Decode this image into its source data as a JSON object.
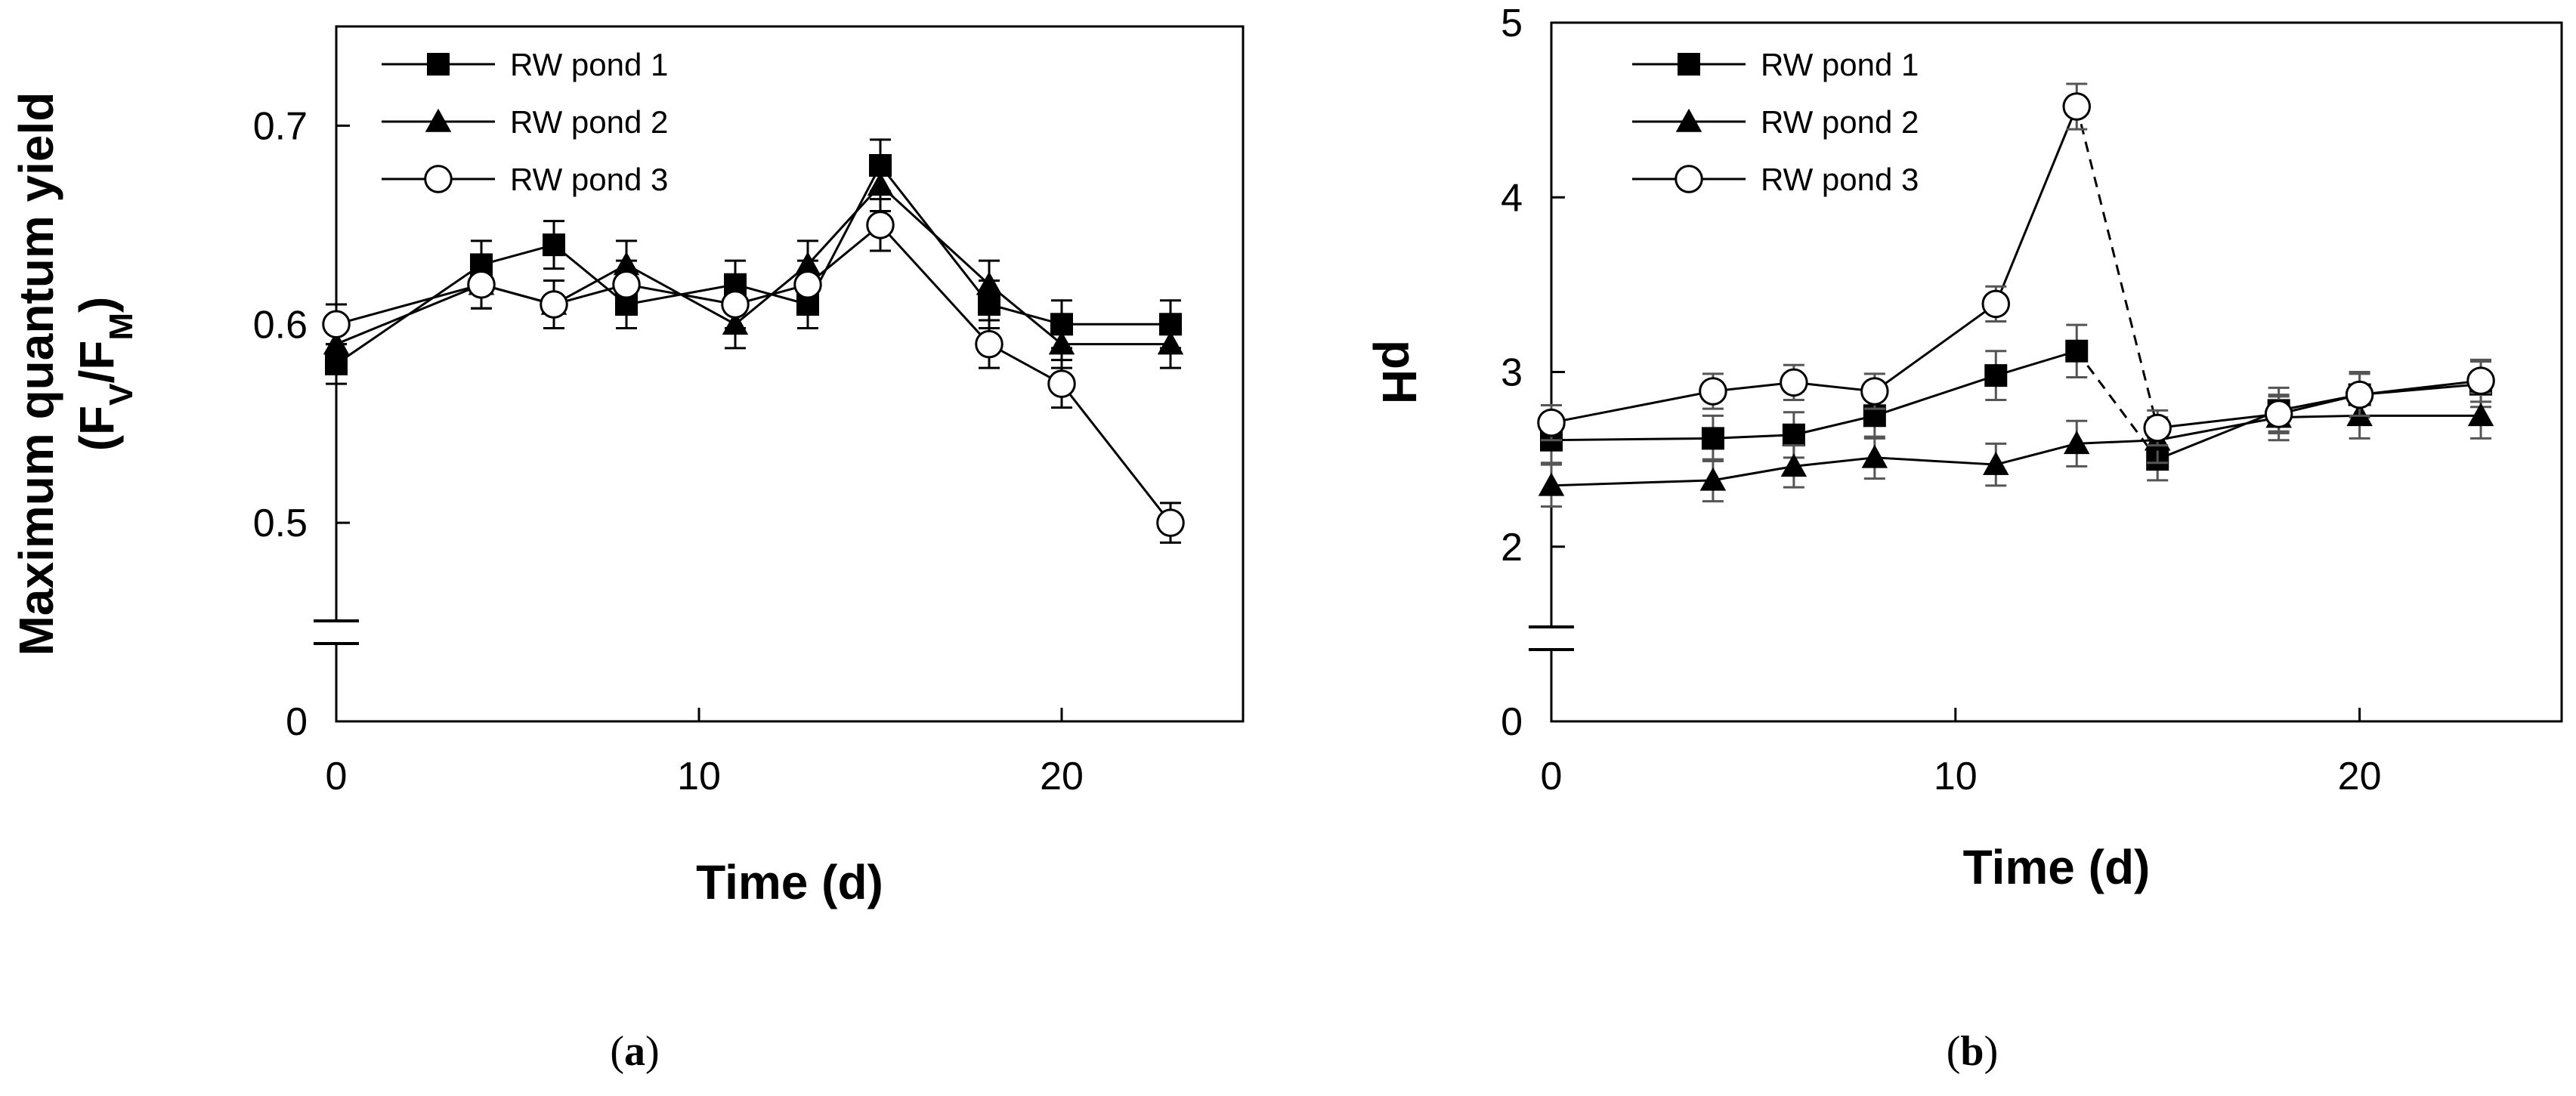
{
  "chart_data": [
    {
      "type": "line",
      "panel": "a",
      "panel_label_open": "(",
      "panel_label_letter": "a",
      "panel_label_close": ")",
      "xlabel": "Time (d)",
      "ylabel_line1": "Maximum quantum yield",
      "ylabel_line2_parts": [
        "(F",
        "V",
        "/F",
        "M",
        ")"
      ],
      "xlim": [
        0,
        25
      ],
      "ylim": [
        0.4,
        0.75
      ],
      "axis_break": true,
      "y_baseline_label": "0",
      "x_ticks": [
        0,
        10,
        20
      ],
      "x_tick_labels": [
        "0",
        "10",
        "20"
      ],
      "y_ticks": [
        0.5,
        0.6,
        0.7
      ],
      "y_tick_labels": [
        "0.5",
        "0.6",
        "0.7"
      ],
      "legend": [
        "RW pond 1",
        "RW pond 2",
        "RW pond 3"
      ],
      "legend_position": "top-left",
      "series": [
        {
          "name": "RW pond 1",
          "marker": "square-filled",
          "x": [
            0,
            4,
            6,
            8,
            11,
            13,
            15,
            18,
            20,
            23
          ],
          "y": [
            0.58,
            0.63,
            0.64,
            0.61,
            0.62,
            0.61,
            0.68,
            0.61,
            0.6,
            0.6
          ],
          "err": [
            0.01,
            0.012,
            0.012,
            0.012,
            0.012,
            0.012,
            0.013,
            0.012,
            0.012,
            0.012
          ]
        },
        {
          "name": "RW pond 2",
          "marker": "triangle-filled",
          "x": [
            0,
            4,
            6,
            8,
            11,
            13,
            15,
            18,
            20,
            23
          ],
          "y": [
            0.59,
            0.62,
            0.61,
            0.63,
            0.6,
            0.63,
            0.67,
            0.62,
            0.59,
            0.59
          ],
          "err": [
            0.01,
            0.012,
            0.012,
            0.012,
            0.012,
            0.012,
            0.013,
            0.012,
            0.012,
            0.012
          ]
        },
        {
          "name": "RW pond 3",
          "marker": "circle-open",
          "x": [
            0,
            4,
            6,
            8,
            11,
            13,
            15,
            18,
            20,
            23
          ],
          "y": [
            0.6,
            0.62,
            0.61,
            0.62,
            0.61,
            0.62,
            0.65,
            0.59,
            0.57,
            0.5
          ],
          "err": [
            0.01,
            0.012,
            0.012,
            0.012,
            0.012,
            0.012,
            0.013,
            0.012,
            0.012,
            0.01
          ]
        }
      ]
    },
    {
      "type": "line",
      "panel": "b",
      "panel_label_open": "(",
      "panel_label_letter": "b",
      "panel_label_close": ")",
      "xlabel": "Time (d)",
      "ylabel": "pH",
      "xlim": [
        0,
        25
      ],
      "ylim": [
        1,
        5
      ],
      "axis_break": true,
      "y_baseline_label": "0",
      "x_ticks": [
        0,
        10,
        20
      ],
      "x_tick_labels": [
        "0",
        "10",
        "20"
      ],
      "y_ticks": [
        2,
        3,
        4,
        5
      ],
      "y_tick_labels": [
        "2",
        "3",
        "4",
        "5"
      ],
      "legend": [
        "RW pond 1",
        "RW pond 2",
        "RW pond 3"
      ],
      "legend_position": "top-left",
      "series": [
        {
          "name": "RW pond 1",
          "marker": "square-filled",
          "x": [
            0,
            4,
            6,
            8,
            11,
            13,
            15,
            18,
            20,
            23
          ],
          "y": [
            2.61,
            2.62,
            2.64,
            2.75,
            2.98,
            3.12,
            2.5,
            2.78,
            2.87,
            2.93
          ],
          "err": [
            0.13,
            0.13,
            0.13,
            0.13,
            0.14,
            0.15,
            0.12,
            0.13,
            0.13,
            0.13
          ],
          "dashed_segments": [
            [
              13,
              15
            ]
          ]
        },
        {
          "name": "RW pond 2",
          "marker": "triangle-filled",
          "x": [
            0,
            4,
            6,
            8,
            11,
            13,
            15,
            18,
            20,
            23
          ],
          "y": [
            2.35,
            2.38,
            2.46,
            2.51,
            2.47,
            2.59,
            2.61,
            2.74,
            2.75,
            2.75
          ],
          "err": [
            0.12,
            0.12,
            0.12,
            0.12,
            0.12,
            0.13,
            0.13,
            0.13,
            0.13,
            0.13
          ]
        },
        {
          "name": "RW pond 3",
          "marker": "circle-open",
          "x": [
            0,
            4,
            6,
            8,
            11,
            13,
            15,
            18,
            20,
            23
          ],
          "y": [
            2.71,
            2.89,
            2.94,
            2.89,
            3.39,
            4.52,
            2.68,
            2.76,
            2.87,
            2.95
          ],
          "err": [
            0.1,
            0.1,
            0.1,
            0.1,
            0.1,
            0.13,
            0.1,
            0.1,
            0.12,
            0.12
          ],
          "dashed_segments": [
            [
              13,
              15
            ]
          ]
        }
      ]
    }
  ]
}
